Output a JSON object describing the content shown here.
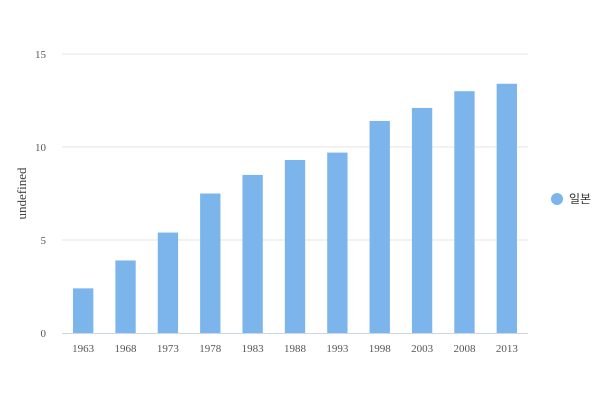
{
  "chart_data": {
    "type": "bar",
    "categories": [
      "1963",
      "1968",
      "1973",
      "1978",
      "1983",
      "1988",
      "1993",
      "1998",
      "2003",
      "2008",
      "2013"
    ],
    "series": [
      {
        "name": "일본",
        "values": [
          2.4,
          3.9,
          5.4,
          7.5,
          8.5,
          9.3,
          9.7,
          11.4,
          12.1,
          13.0,
          13.4
        ],
        "color": "#7cb5ec"
      }
    ],
    "ylabel": "undefined",
    "xlabel": "",
    "ylim": [
      0,
      15
    ],
    "yticks": [
      "0",
      "5",
      "10",
      "15"
    ],
    "grid": true,
    "legend_position": "right"
  }
}
